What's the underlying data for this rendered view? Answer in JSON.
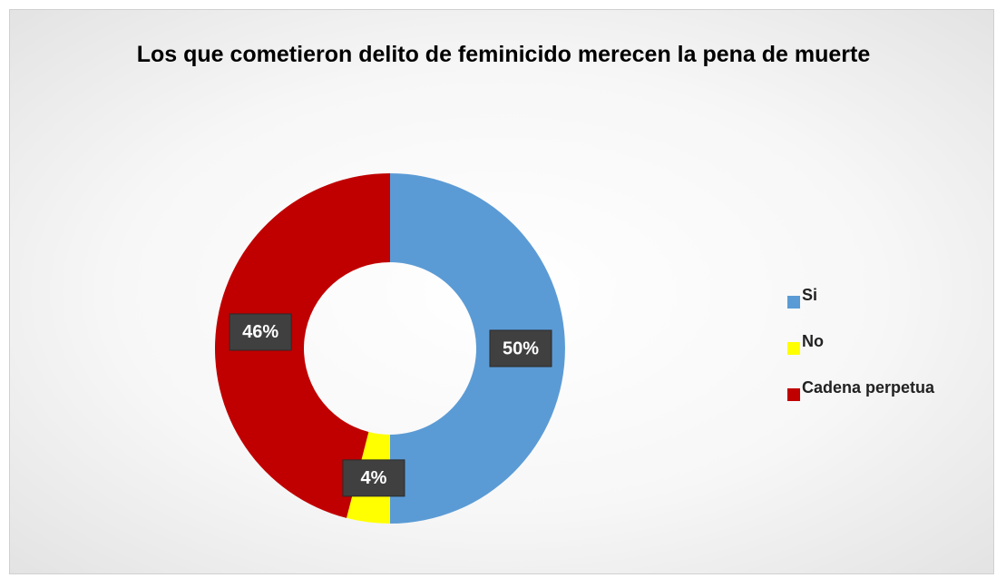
{
  "chart_data": {
    "type": "donut",
    "title": "Los que cometieron delito de feminicido merecen la pena de muerte",
    "categories": [
      "Si",
      "No",
      "Cadena perpetua"
    ],
    "values": [
      50,
      4,
      46
    ],
    "value_labels": [
      "50%",
      "4%",
      "46%"
    ],
    "colors": [
      "#5b9bd5",
      "#ffff00",
      "#c00000"
    ],
    "legend": "right"
  }
}
